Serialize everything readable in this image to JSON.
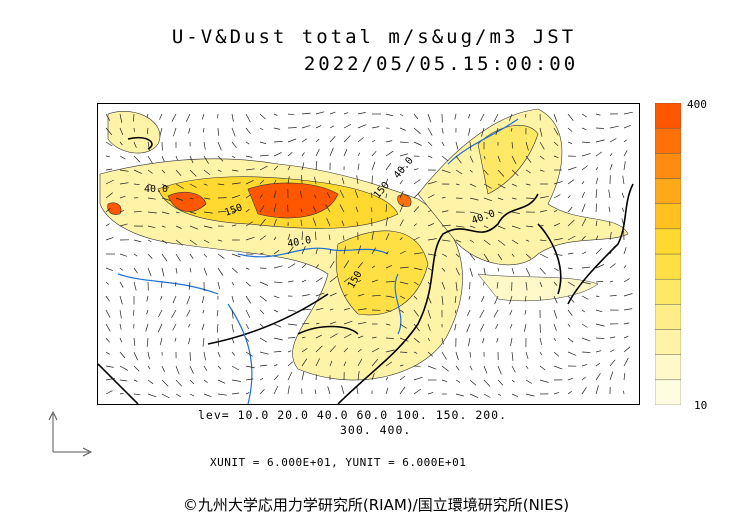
{
  "title": {
    "line1": "U-V&Dust total m/s&ug/m3 JST",
    "line2": "2022/05/05.15:00:00"
  },
  "colorbar": {
    "max_label": "400",
    "min_label": "10",
    "colors": [
      "#fffde0",
      "#fff8c8",
      "#fff3a8",
      "#ffee88",
      "#ffe866",
      "#ffe044",
      "#ffd830",
      "#ffc020",
      "#ffa818",
      "#ff8c10",
      "#ff7008",
      "#ff5600"
    ]
  },
  "contour_levels": {
    "line1": "lev= 10.0 20.0 40.0 60.0 100. 150. 200.",
    "line2": "300. 400."
  },
  "units": "XUNIT = 6.000E+01, YUNIT = 6.000E+01",
  "credit": "©九州大学応用力学研究所(RIAM)/国立環境研究所(NIES)",
  "map_labels": [
    {
      "text": "40.0"
    },
    {
      "text": "150"
    },
    {
      "text": "40.0"
    },
    {
      "text": "150"
    },
    {
      "text": "40.0"
    },
    {
      "text": "150"
    },
    {
      "text": "40.0"
    }
  ],
  "colors": {
    "coast": "#000000",
    "river": "#1f6fd6",
    "dust_high": "#ff5600",
    "dust_low": "#fff3a8"
  }
}
